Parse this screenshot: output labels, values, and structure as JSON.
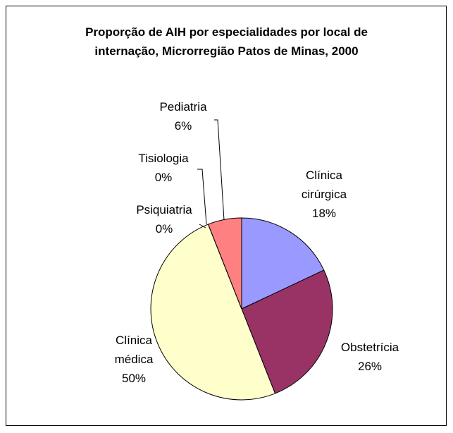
{
  "chart_data": {
    "type": "pie",
    "title": "Proporção de AIH por especialidades por local de internação, Microrregião Patos de Minas, 2000",
    "categories": [
      "Clínica cirúrgica",
      "Obstetrícia",
      "Clínica médica",
      "Psiquiatria",
      "Tisiologia",
      "Pediatria"
    ],
    "values": [
      18,
      26,
      50,
      0,
      0,
      6
    ],
    "value_labels": [
      "18%",
      "26%",
      "50%",
      "0%",
      "0%",
      "6%"
    ],
    "colors": [
      "#9999ff",
      "#993366",
      "#ffffcc",
      "#660066",
      "#ccffff",
      "#ff8080"
    ]
  }
}
